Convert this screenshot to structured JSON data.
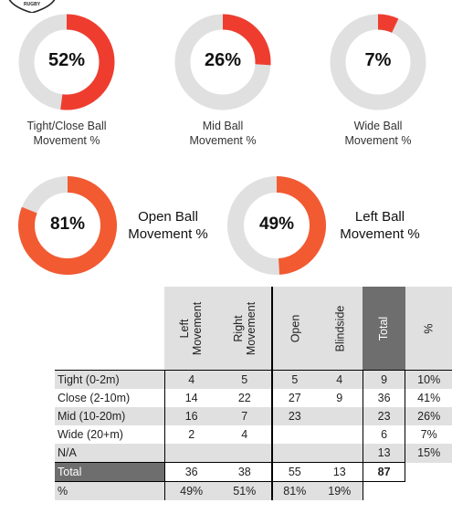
{
  "colors": {
    "accent": "#ee3d2f",
    "accent_light": "#ff6a3d",
    "ring_bg": "#e0e0e0",
    "header_bg": "#e0e0e0",
    "total_bg": "#6e6e6e"
  },
  "logo": {
    "icon": "rugby-shield-logo",
    "text": "RUGBY"
  },
  "donuts": [
    {
      "value": 52,
      "label": "52%",
      "caption": [
        "Tight/Close Ball",
        "Movement %"
      ]
    },
    {
      "value": 26,
      "label": "26%",
      "caption": [
        "Mid Ball",
        "Movement %"
      ]
    },
    {
      "value": 7,
      "label": "7%",
      "caption": [
        "Wide Ball",
        "Movement %"
      ]
    },
    {
      "value": 81,
      "label": "81%",
      "caption": [
        "Open Ball",
        "Movement %"
      ]
    },
    {
      "value": 49,
      "label": "49%",
      "caption": [
        "Left Ball",
        "Movement %"
      ]
    }
  ],
  "chart_data": {
    "type": "table",
    "headers": [
      "Left\nMovement",
      "Right\nMovement",
      "Open",
      "Blindside",
      "Total",
      "%"
    ],
    "rows": [
      {
        "label": "Tight (0-2m)",
        "cells": [
          "4",
          "5",
          "5",
          "4",
          "9",
          "10%"
        ]
      },
      {
        "label": "Close (2-10m)",
        "cells": [
          "14",
          "22",
          "27",
          "9",
          "36",
          "41%"
        ]
      },
      {
        "label": "Mid (10-20m)",
        "cells": [
          "16",
          "7",
          "23",
          "",
          "23",
          "26%"
        ]
      },
      {
        "label": "Wide (20+m)",
        "cells": [
          "2",
          "4",
          "",
          "",
          "6",
          "7%"
        ]
      },
      {
        "label": "N/A",
        "cells": [
          "",
          "",
          "",
          "",
          "13",
          "15%"
        ]
      },
      {
        "label": "Total",
        "cells": [
          "36",
          "38",
          "55",
          "13",
          "87",
          ""
        ]
      },
      {
        "label": "%",
        "cells": [
          "49%",
          "51%",
          "81%",
          "19%",
          "",
          ""
        ]
      }
    ]
  }
}
